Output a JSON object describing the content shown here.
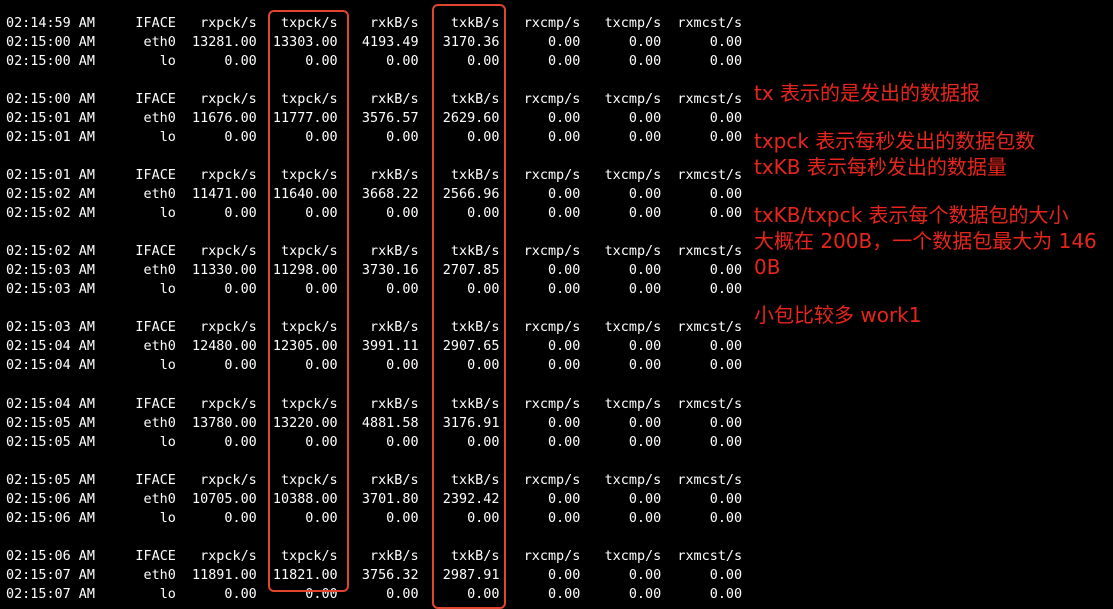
{
  "columns": [
    "IFACE",
    "rxpck/s",
    "txpck/s",
    "rxkB/s",
    "txkB/s",
    "rxcmp/s",
    "txcmp/s",
    "rxmcst/s"
  ],
  "blocks": [
    {
      "header_time": "02:14:59 AM",
      "rows": [
        [
          "02:15:00 AM",
          "eth0",
          "13281.00",
          "13303.00",
          "4193.49",
          "3170.36",
          "0.00",
          "0.00",
          "0.00"
        ],
        [
          "02:15:00 AM",
          "lo",
          "0.00",
          "0.00",
          "0.00",
          "0.00",
          "0.00",
          "0.00",
          "0.00"
        ]
      ]
    },
    {
      "header_time": "02:15:00 AM",
      "rows": [
        [
          "02:15:01 AM",
          "eth0",
          "11676.00",
          "11777.00",
          "3576.57",
          "2629.60",
          "0.00",
          "0.00",
          "0.00"
        ],
        [
          "02:15:01 AM",
          "lo",
          "0.00",
          "0.00",
          "0.00",
          "0.00",
          "0.00",
          "0.00",
          "0.00"
        ]
      ]
    },
    {
      "header_time": "02:15:01 AM",
      "rows": [
        [
          "02:15:02 AM",
          "eth0",
          "11471.00",
          "11640.00",
          "3668.22",
          "2566.96",
          "0.00",
          "0.00",
          "0.00"
        ],
        [
          "02:15:02 AM",
          "lo",
          "0.00",
          "0.00",
          "0.00",
          "0.00",
          "0.00",
          "0.00",
          "0.00"
        ]
      ]
    },
    {
      "header_time": "02:15:02 AM",
      "rows": [
        [
          "02:15:03 AM",
          "eth0",
          "11330.00",
          "11298.00",
          "3730.16",
          "2707.85",
          "0.00",
          "0.00",
          "0.00"
        ],
        [
          "02:15:03 AM",
          "lo",
          "0.00",
          "0.00",
          "0.00",
          "0.00",
          "0.00",
          "0.00",
          "0.00"
        ]
      ]
    },
    {
      "header_time": "02:15:03 AM",
      "rows": [
        [
          "02:15:04 AM",
          "eth0",
          "12480.00",
          "12305.00",
          "3991.11",
          "2907.65",
          "0.00",
          "0.00",
          "0.00"
        ],
        [
          "02:15:04 AM",
          "lo",
          "0.00",
          "0.00",
          "0.00",
          "0.00",
          "0.00",
          "0.00",
          "0.00"
        ]
      ]
    },
    {
      "header_time": "02:15:04 AM",
      "rows": [
        [
          "02:15:05 AM",
          "eth0",
          "13780.00",
          "13220.00",
          "4881.58",
          "3176.91",
          "0.00",
          "0.00",
          "0.00"
        ],
        [
          "02:15:05 AM",
          "lo",
          "0.00",
          "0.00",
          "0.00",
          "0.00",
          "0.00",
          "0.00",
          "0.00"
        ]
      ]
    },
    {
      "header_time": "02:15:05 AM",
      "rows": [
        [
          "02:15:06 AM",
          "eth0",
          "10705.00",
          "10388.00",
          "3701.80",
          "2392.42",
          "0.00",
          "0.00",
          "0.00"
        ],
        [
          "02:15:06 AM",
          "lo",
          "0.00",
          "0.00",
          "0.00",
          "0.00",
          "0.00",
          "0.00",
          "0.00"
        ]
      ]
    },
    {
      "header_time": "02:15:06 AM",
      "rows": [
        [
          "02:15:07 AM",
          "eth0",
          "11891.00",
          "11821.00",
          "3756.32",
          "2987.91",
          "0.00",
          "0.00",
          "0.00"
        ],
        [
          "02:15:07 AM",
          "lo",
          "0.00",
          "0.00",
          "0.00",
          "0.00",
          "0.00",
          "0.00",
          "0.00"
        ]
      ]
    }
  ],
  "annotations": {
    "line1": "tx 表示的是发出的数据报",
    "line2": "txpck 表示每秒发出的数据包数",
    "line3": "txKB 表示每秒发出的数据量",
    "line4": "txKB/txpck 表示每个数据包的大小",
    "line5": "大概在 200B，一个数据包最大为 1460B",
    "line6": "小包比较多 work1"
  },
  "colors": {
    "background": "#000000",
    "text": "#ffffff",
    "annotation": "#e8251c",
    "highlight_box": "#e0452e"
  }
}
